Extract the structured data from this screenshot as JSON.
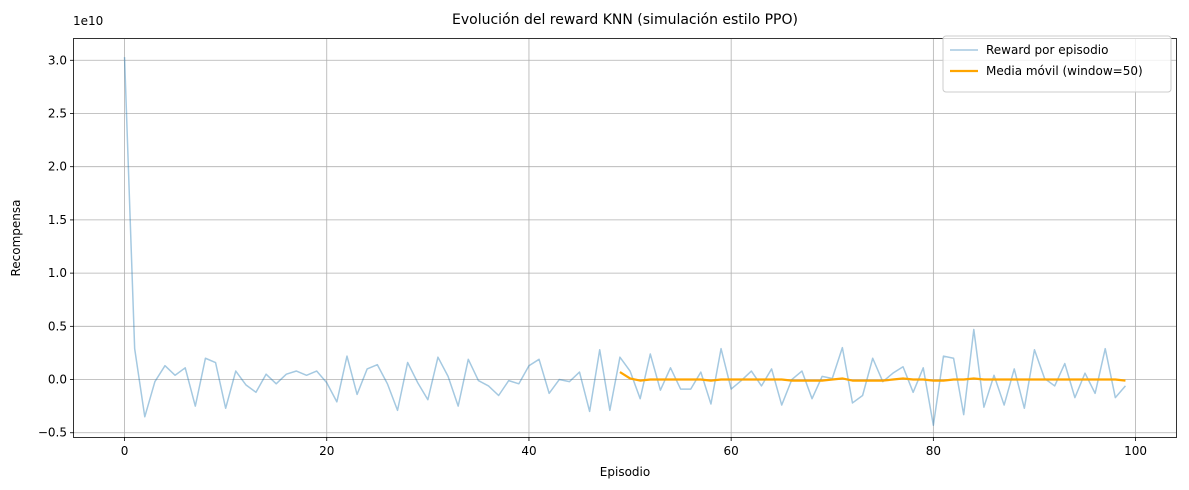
{
  "chart_data": {
    "type": "line",
    "title": "Evolución del reward KNN (simulación estilo PPO)",
    "xlabel": "Episodio",
    "ylabel": "Recompensa",
    "y_scale_label": "1e10",
    "xlim": [
      -5,
      104
    ],
    "ylim": [
      -0.54,
      3.2
    ],
    "x_ticks": [
      0,
      20,
      40,
      60,
      80,
      100
    ],
    "x_tick_labels": [
      "0",
      "20",
      "40",
      "60",
      "80",
      "100"
    ],
    "y_ticks": [
      -0.5,
      0.0,
      0.5,
      1.0,
      1.5,
      2.0,
      2.5,
      3.0
    ],
    "y_tick_labels": [
      "−0.5",
      "0.0",
      "0.5",
      "1.0",
      "1.5",
      "2.0",
      "2.5",
      "3.0"
    ],
    "grid": true,
    "legend_position": "top-right",
    "series": [
      {
        "name": "Reward por episodio",
        "color": "#1f77b4",
        "opacity": 0.4,
        "x": [
          0,
          1,
          2,
          3,
          4,
          5,
          6,
          7,
          8,
          9,
          10,
          11,
          12,
          13,
          14,
          15,
          16,
          17,
          18,
          19,
          20,
          21,
          22,
          23,
          24,
          25,
          26,
          27,
          28,
          29,
          30,
          31,
          32,
          33,
          34,
          35,
          36,
          37,
          38,
          39,
          40,
          41,
          42,
          43,
          44,
          45,
          46,
          47,
          48,
          49,
          50,
          51,
          52,
          53,
          54,
          55,
          56,
          57,
          58,
          59,
          60,
          61,
          62,
          63,
          64,
          65,
          66,
          67,
          68,
          69,
          70,
          71,
          72,
          73,
          74,
          75,
          76,
          77,
          78,
          79,
          80,
          81,
          82,
          83,
          84,
          85,
          86,
          87,
          88,
          89,
          90,
          91,
          92,
          93,
          94,
          95,
          96,
          97,
          98,
          99
        ],
        "values": [
          3.03,
          0.29,
          -0.35,
          -0.02,
          0.13,
          0.04,
          0.11,
          -0.25,
          0.2,
          0.16,
          -0.27,
          0.08,
          -0.05,
          -0.12,
          0.05,
          -0.04,
          0.05,
          0.08,
          0.04,
          0.08,
          -0.03,
          -0.21,
          0.22,
          -0.14,
          0.1,
          0.14,
          -0.04,
          -0.29,
          0.16,
          -0.03,
          -0.19,
          0.21,
          0.03,
          -0.25,
          0.19,
          -0.01,
          -0.06,
          -0.15,
          -0.01,
          -0.04,
          0.13,
          0.19,
          -0.13,
          0.0,
          -0.02,
          0.07,
          -0.3,
          0.28,
          -0.29,
          0.21,
          0.08,
          -0.18,
          0.24,
          -0.1,
          0.11,
          -0.09,
          -0.09,
          0.07,
          -0.23,
          0.29,
          -0.09,
          -0.01,
          0.08,
          -0.06,
          0.1,
          -0.24,
          0.0,
          0.08,
          -0.18,
          0.03,
          0.01,
          0.3,
          -0.22,
          -0.15,
          0.2,
          -0.02,
          0.06,
          0.12,
          -0.12,
          0.11,
          -0.43,
          0.22,
          0.2,
          -0.33,
          0.47,
          -0.26,
          0.04,
          -0.24,
          0.1,
          -0.27,
          0.28,
          0.01,
          -0.06,
          0.15,
          -0.17,
          0.06,
          -0.13,
          0.29,
          -0.17,
          -0.06
        ]
      },
      {
        "name": "Media móvil (window=50)",
        "color": "#ffa500",
        "opacity": 1,
        "x": [
          49,
          50,
          51,
          52,
          53,
          54,
          55,
          56,
          57,
          58,
          59,
          60,
          61,
          62,
          63,
          64,
          65,
          66,
          67,
          68,
          69,
          70,
          71,
          72,
          73,
          74,
          75,
          76,
          77,
          78,
          79,
          80,
          81,
          82,
          83,
          84,
          85,
          86,
          87,
          88,
          89,
          90,
          91,
          92,
          93,
          94,
          95,
          96,
          97,
          98,
          99
        ],
        "values": [
          0.07,
          0.01,
          -0.01,
          0.0,
          0.0,
          0.0,
          0.0,
          0.0,
          0.0,
          -0.01,
          0.0,
          0.0,
          0.0,
          0.0,
          0.0,
          0.0,
          0.0,
          -0.01,
          -0.01,
          -0.01,
          -0.01,
          0.0,
          0.01,
          -0.01,
          -0.01,
          -0.01,
          -0.01,
          0.0,
          0.01,
          0.0,
          0.0,
          -0.01,
          -0.01,
          0.0,
          0.0,
          0.01,
          0.0,
          0.0,
          0.0,
          0.0,
          0.0,
          0.0,
          0.0,
          0.0,
          0.0,
          0.0,
          0.0,
          0.0,
          0.0,
          0.0,
          -0.01
        ]
      }
    ]
  }
}
